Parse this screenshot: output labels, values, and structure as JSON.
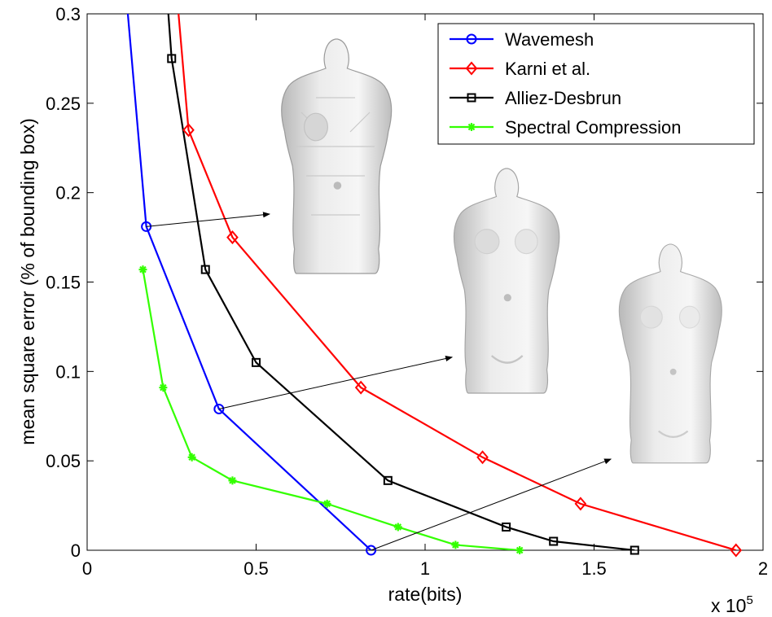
{
  "chart_data": {
    "type": "line",
    "xlabel": "rate(bits)",
    "ylabel": "mean square error (% of bounding box)",
    "x_multiplier_label": "x 10",
    "x_multiplier_exponent": "5",
    "xlim": [
      0,
      200000
    ],
    "ylim": [
      0,
      0.3
    ],
    "x_ticks": [
      0,
      50000,
      100000,
      150000,
      200000
    ],
    "x_tick_labels": [
      "0",
      "0.5",
      "1",
      "1.5",
      "2"
    ],
    "y_ticks": [
      0,
      0.05,
      0.1,
      0.15,
      0.2,
      0.25,
      0.3
    ],
    "y_tick_labels": [
      "0",
      "0.05",
      "0.1",
      "0.15",
      "0.2",
      "0.25",
      "0.3"
    ],
    "grid": false,
    "legend_position": "top-right",
    "series": [
      {
        "name": "Wavemesh",
        "color": "#0000ff",
        "marker": "circle",
        "x": [
          17500,
          39000,
          84000
        ],
        "y": [
          0.181,
          0.079,
          0.0
        ],
        "line_extends_to_top_at_x": 12000
      },
      {
        "name": "Karni et al.",
        "color": "#ff0000",
        "marker": "diamond",
        "x": [
          30000,
          43000,
          81000,
          117000,
          146000,
          192000
        ],
        "y": [
          0.235,
          0.175,
          0.091,
          0.052,
          0.026,
          0.0
        ],
        "line_extends_to_top_at_x": 27000
      },
      {
        "name": "Alliez-Desbrun",
        "color": "#000000",
        "marker": "square",
        "x": [
          25000,
          35000,
          50000,
          89000,
          124000,
          138000,
          162000
        ],
        "y": [
          0.275,
          0.157,
          0.105,
          0.039,
          0.013,
          0.005,
          0.0
        ],
        "line_extends_to_top_at_x": 24000
      },
      {
        "name": "Spectral Compression",
        "color": "#33ff00",
        "marker": "asterisk",
        "x": [
          16500,
          22500,
          31000,
          43000,
          71000,
          92000,
          109000,
          128000
        ],
        "y": [
          0.157,
          0.091,
          0.052,
          0.039,
          0.026,
          0.013,
          0.003,
          0.0
        ]
      }
    ],
    "annotations": [
      {
        "type": "arrow",
        "from": [
          17500,
          0.181
        ],
        "to": [
          54000,
          0.188
        ],
        "points_to": "torso-mesh-coarse"
      },
      {
        "type": "arrow",
        "from": [
          39000,
          0.079
        ],
        "to": [
          108000,
          0.108
        ],
        "points_to": "torso-mesh-medium"
      },
      {
        "type": "arrow",
        "from": [
          84000,
          0.0
        ],
        "to": [
          155000,
          0.051
        ],
        "points_to": "torso-mesh-fine"
      }
    ],
    "images": [
      {
        "name": "torso-mesh-coarse",
        "depicts": "low-resolution torso mesh"
      },
      {
        "name": "torso-mesh-medium",
        "depicts": "medium-resolution torso mesh"
      },
      {
        "name": "torso-mesh-fine",
        "depicts": "high-resolution torso mesh"
      }
    ]
  }
}
